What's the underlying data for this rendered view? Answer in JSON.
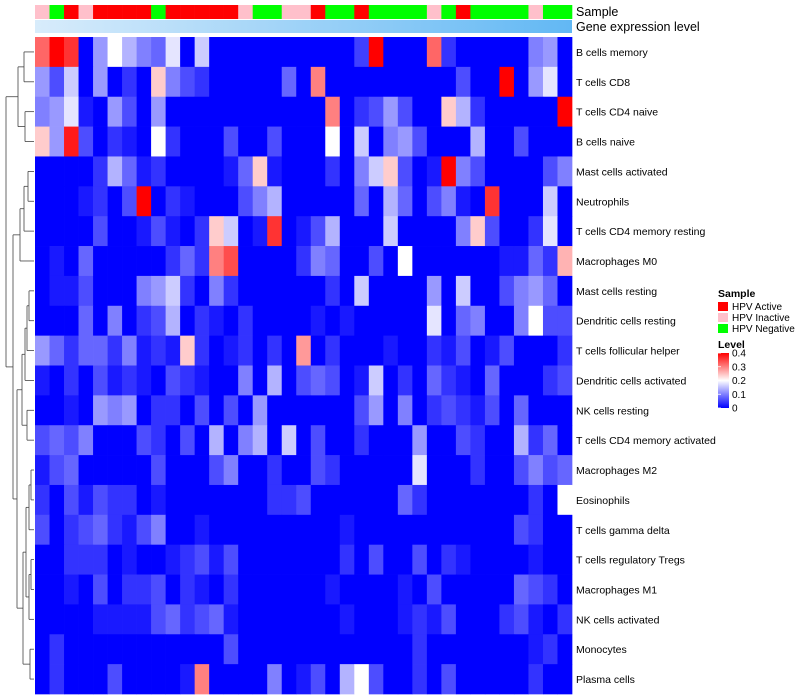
{
  "chart_data": {
    "type": "heatmap",
    "annotation_labels": {
      "sample": "Sample",
      "gene_expression": "Gene expression level"
    },
    "legend": {
      "sample_title": "Sample",
      "sample_groups": [
        {
          "name": "HPV Active",
          "color": "#ff0000"
        },
        {
          "name": "HPV Inactive",
          "color": "#ffc0cb"
        },
        {
          "name": "HPV Negative",
          "color": "#00ff00"
        }
      ],
      "level_title": "Level",
      "level_ticks": [
        "0.4",
        "0.3",
        "0.2",
        "0.1",
        "0"
      ],
      "level_range": [
        0,
        0.4
      ],
      "level_colors": {
        "low": "#0000ff",
        "mid": "#ffffff",
        "high": "#ff0000"
      }
    },
    "sample_annotation": [
      "Inactive",
      "Negative",
      "Active",
      "Inactive",
      "Active",
      "Active",
      "Active",
      "Active",
      "Negative",
      "Active",
      "Active",
      "Active",
      "Active",
      "Active",
      "Inactive",
      "Negative",
      "Negative",
      "Inactive",
      "Inactive",
      "Active",
      "Negative",
      "Negative",
      "Active",
      "Negative",
      "Negative",
      "Negative",
      "Negative",
      "Inactive",
      "Negative",
      "Active",
      "Negative",
      "Negative",
      "Negative",
      "Negative",
      "Inactive",
      "Negative",
      "Negative"
    ],
    "gene_expression_bar": {
      "start_color": "#d8ecfb",
      "end_color": "#62b8f4"
    },
    "rows": [
      "B cells memory",
      "T cells CD8",
      "T cells CD4 naive",
      "B cells naive",
      "Mast cells activated",
      "Neutrophils",
      "T cells CD4 memory resting",
      "Macrophages M0",
      "Mast cells resting",
      "Dendritic cells resting",
      "T cells follicular helper",
      "Dendritic cells activated",
      "NK cells resting",
      "T cells CD4 memory activated",
      "Macrophages M2",
      "Eosinophils",
      "T cells gamma delta",
      "T cells regulatory  Tregs",
      "Macrophages M1",
      "NK cells activated",
      "Monocytes",
      "Plasma cells"
    ],
    "values": [
      [
        0.32,
        0.4,
        0.36,
        0,
        0.12,
        0.2,
        0.14,
        0.1,
        0.08,
        0.18,
        0,
        0.16,
        0,
        0,
        0,
        0,
        0,
        0,
        0,
        0,
        0,
        0,
        0.05,
        0.4,
        0,
        0,
        0,
        0.32,
        0.04,
        0,
        0,
        0,
        0,
        0,
        0.1,
        0.12,
        0
      ],
      [
        0.12,
        0.06,
        0.16,
        0,
        0.12,
        0,
        0.04,
        0,
        0.24,
        0.1,
        0.06,
        0.04,
        0,
        0,
        0,
        0,
        0,
        0.08,
        0,
        0.3,
        0,
        0,
        0,
        0,
        0,
        0,
        0,
        0,
        0,
        0.06,
        0,
        0,
        0.4,
        0,
        0.12,
        0.18,
        0
      ],
      [
        0.1,
        0.12,
        0.18,
        0.02,
        0,
        0.12,
        0.06,
        0,
        0.12,
        0,
        0,
        0,
        0,
        0,
        0,
        0,
        0,
        0,
        0,
        0,
        0.3,
        0,
        0.04,
        0.06,
        0.12,
        0.06,
        0,
        0,
        0.24,
        0.14,
        0.04,
        0,
        0,
        0,
        0,
        0,
        0.4
      ],
      [
        0.24,
        0.12,
        0.38,
        0.06,
        0,
        0.04,
        0.02,
        0,
        0.2,
        0.04,
        0,
        0,
        0,
        0.06,
        0,
        0,
        0.06,
        0,
        0,
        0,
        0.2,
        0,
        0.16,
        0,
        0.1,
        0.12,
        0.06,
        0,
        0,
        0,
        0.14,
        0,
        0,
        0.06,
        0,
        0,
        0
      ],
      [
        0,
        0,
        0,
        0,
        0.04,
        0.14,
        0.08,
        0.02,
        0.04,
        0,
        0,
        0,
        0,
        0.02,
        0.08,
        0.24,
        0.02,
        0,
        0,
        0,
        0.04,
        0,
        0.1,
        0.16,
        0.24,
        0.06,
        0,
        0.02,
        0.4,
        0.1,
        0.06,
        0,
        0,
        0,
        0,
        0.06,
        0.1
      ],
      [
        0,
        0,
        0,
        0.02,
        0.04,
        0,
        0.06,
        0.4,
        0,
        0.04,
        0.02,
        0,
        0,
        0,
        0.06,
        0.1,
        0.14,
        0,
        0,
        0,
        0,
        0,
        0.08,
        0,
        0.14,
        0.08,
        0,
        0.06,
        0.1,
        0.02,
        0,
        0.36,
        0,
        0,
        0,
        0.16,
        0
      ],
      [
        0,
        0,
        0,
        0,
        0.06,
        0,
        0,
        0.02,
        0.06,
        0.02,
        0,
        0.04,
        0.24,
        0.16,
        0,
        0.02,
        0.36,
        0,
        0.02,
        0.06,
        0.14,
        0,
        0,
        0,
        0.16,
        0,
        0,
        0,
        0,
        0.1,
        0.24,
        0.06,
        0,
        0,
        0.04,
        0.18,
        0
      ],
      [
        0,
        0.02,
        0,
        0.08,
        0,
        0,
        0,
        0,
        0,
        0.04,
        0.08,
        0.04,
        0.3,
        0.34,
        0,
        0,
        0,
        0,
        0.04,
        0.1,
        0.08,
        0,
        0,
        0.06,
        0,
        0.2,
        0,
        0,
        0,
        0,
        0,
        0,
        0.02,
        0.02,
        0.08,
        0.04,
        0.26
      ],
      [
        0,
        0.02,
        0.02,
        0.06,
        0,
        0,
        0,
        0.1,
        0.12,
        0.16,
        0.04,
        0,
        0.1,
        0.04,
        0,
        0,
        0,
        0,
        0,
        0,
        0.04,
        0,
        0.16,
        0,
        0,
        0,
        0,
        0.12,
        0,
        0.16,
        0,
        0,
        0.06,
        0.1,
        0.12,
        0.08,
        0
      ],
      [
        0,
        0,
        0,
        0.08,
        0,
        0.1,
        0,
        0.04,
        0.06,
        0.14,
        0,
        0.04,
        0.02,
        0,
        0.04,
        0,
        0,
        0,
        0,
        0.02,
        0,
        0.02,
        0,
        0,
        0,
        0,
        0,
        0.18,
        0,
        0.08,
        0.1,
        0,
        0,
        0.1,
        0.2,
        0.06,
        0.06
      ],
      [
        0.12,
        0.08,
        0.04,
        0.08,
        0.08,
        0.04,
        0.1,
        0.02,
        0.04,
        0.02,
        0.24,
        0.04,
        0,
        0.02,
        0.04,
        0,
        0.04,
        0,
        0.28,
        0,
        0.04,
        0,
        0,
        0,
        0.02,
        0,
        0,
        0.04,
        0.02,
        0.06,
        0,
        0.02,
        0.06,
        0,
        0,
        0,
        0.04
      ],
      [
        0.02,
        0,
        0.04,
        0,
        0.06,
        0.02,
        0.04,
        0.02,
        0,
        0.06,
        0.04,
        0.02,
        0,
        0,
        0.1,
        0,
        0.14,
        0,
        0.06,
        0.08,
        0.06,
        0,
        0.02,
        0.16,
        0,
        0.04,
        0,
        0.08,
        0.04,
        0.02,
        0,
        0.08,
        0,
        0,
        0,
        0.04,
        0.06
      ],
      [
        0,
        0,
        0.02,
        0,
        0.12,
        0.1,
        0.12,
        0,
        0.04,
        0.04,
        0,
        0.06,
        0,
        0.06,
        0,
        0.12,
        0,
        0,
        0,
        0,
        0,
        0,
        0.06,
        0.12,
        0,
        0.1,
        0,
        0.04,
        0.06,
        0.04,
        0.02,
        0.06,
        0,
        0.08,
        0,
        0,
        0
      ],
      [
        0.06,
        0.08,
        0.06,
        0.1,
        0,
        0,
        0,
        0.06,
        0.04,
        0,
        0.06,
        0,
        0.14,
        0,
        0.1,
        0.14,
        0,
        0.16,
        0,
        0.06,
        0,
        0,
        0.04,
        0,
        0,
        0,
        0.12,
        0,
        0,
        0.06,
        0.04,
        0,
        0,
        0.14,
        0.04,
        0.08,
        0
      ],
      [
        0.02,
        0.06,
        0.08,
        0,
        0,
        0,
        0,
        0,
        0.06,
        0,
        0,
        0,
        0.06,
        0.1,
        0,
        0,
        0.04,
        0,
        0,
        0.06,
        0.04,
        0,
        0,
        0,
        0,
        0,
        0.18,
        0,
        0,
        0,
        0.04,
        0,
        0,
        0.06,
        0.1,
        0.06,
        0.08
      ],
      [
        0.04,
        0,
        0.06,
        0.02,
        0.06,
        0.04,
        0.04,
        0,
        0.02,
        0,
        0,
        0,
        0,
        0,
        0,
        0,
        0.04,
        0.04,
        0.06,
        0,
        0,
        0,
        0,
        0,
        0,
        0.08,
        0.04,
        0,
        0,
        0,
        0,
        0,
        0,
        0,
        0.04,
        0,
        0.2
      ],
      [
        0.06,
        0,
        0.04,
        0.06,
        0.08,
        0.04,
        0.02,
        0.06,
        0.1,
        0,
        0,
        0.02,
        0,
        0,
        0,
        0,
        0,
        0,
        0,
        0,
        0,
        0.02,
        0,
        0,
        0,
        0,
        0,
        0,
        0,
        0,
        0,
        0,
        0,
        0.06,
        0.04,
        0,
        0
      ],
      [
        0,
        0,
        0.04,
        0.04,
        0.04,
        0,
        0.02,
        0,
        0,
        0.02,
        0.04,
        0.06,
        0.02,
        0.06,
        0,
        0,
        0,
        0,
        0,
        0,
        0,
        0.04,
        0,
        0.06,
        0,
        0,
        0.06,
        0,
        0.04,
        0.02,
        0,
        0,
        0,
        0,
        0.02,
        0,
        0
      ],
      [
        0,
        0,
        0.02,
        0,
        0.06,
        0,
        0.04,
        0.04,
        0.06,
        0,
        0.04,
        0.02,
        0,
        0.04,
        0,
        0,
        0,
        0,
        0,
        0,
        0.02,
        0,
        0,
        0,
        0,
        0.02,
        0,
        0.06,
        0,
        0,
        0,
        0,
        0,
        0.08,
        0.06,
        0.04,
        0
      ],
      [
        0,
        0,
        0,
        0,
        0.02,
        0.02,
        0.02,
        0.02,
        0.06,
        0.08,
        0.04,
        0.06,
        0.08,
        0.02,
        0,
        0,
        0,
        0,
        0,
        0,
        0,
        0.02,
        0,
        0,
        0,
        0.02,
        0.04,
        0.02,
        0.06,
        0,
        0,
        0,
        0.04,
        0.06,
        0.02,
        0,
        0.04
      ],
      [
        0,
        0.04,
        0,
        0,
        0,
        0,
        0,
        0,
        0,
        0,
        0,
        0,
        0,
        0.06,
        0,
        0,
        0,
        0,
        0,
        0,
        0,
        0,
        0,
        0,
        0,
        0,
        0.04,
        0,
        0,
        0,
        0,
        0,
        0,
        0,
        0.02,
        0.04,
        0
      ],
      [
        0,
        0.04,
        0,
        0,
        0,
        0.06,
        0,
        0,
        0,
        0,
        0.02,
        0.3,
        0,
        0,
        0,
        0,
        0.1,
        0,
        0.02,
        0.06,
        0,
        0.14,
        0.2,
        0.06,
        0,
        0,
        0.04,
        0,
        0.06,
        0,
        0,
        0,
        0,
        0,
        0.04,
        0,
        0
      ]
    ]
  }
}
